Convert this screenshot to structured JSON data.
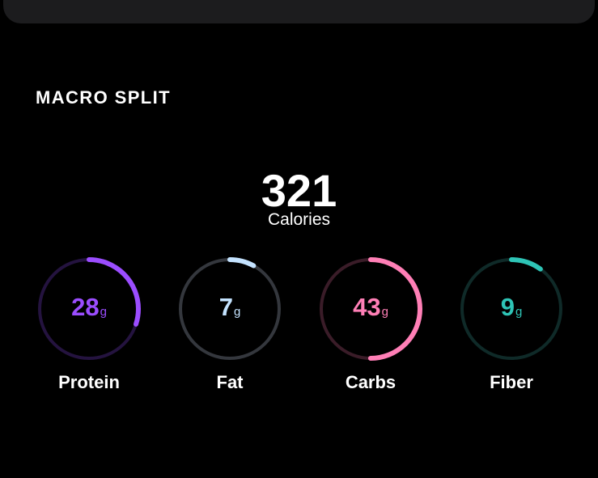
{
  "section": {
    "title": "MACRO SPLIT"
  },
  "calories": {
    "value": "321",
    "label": "Calories"
  },
  "macros": [
    {
      "name": "Protein",
      "value": "28",
      "unit": "g",
      "progress": 0.3,
      "color": "#9b4dff",
      "track": "#24133f"
    },
    {
      "name": "Fat",
      "value": "7",
      "unit": "g",
      "progress": 0.08,
      "color": "#c4e3ff",
      "track": "#34373d"
    },
    {
      "name": "Carbs",
      "value": "43",
      "unit": "g",
      "progress": 0.5,
      "color": "#ff7fb6",
      "track": "#3a1c28"
    },
    {
      "name": "Fiber",
      "value": "9",
      "unit": "g",
      "progress": 0.1,
      "color": "#2ec4b6",
      "track": "#0f2a28"
    }
  ]
}
